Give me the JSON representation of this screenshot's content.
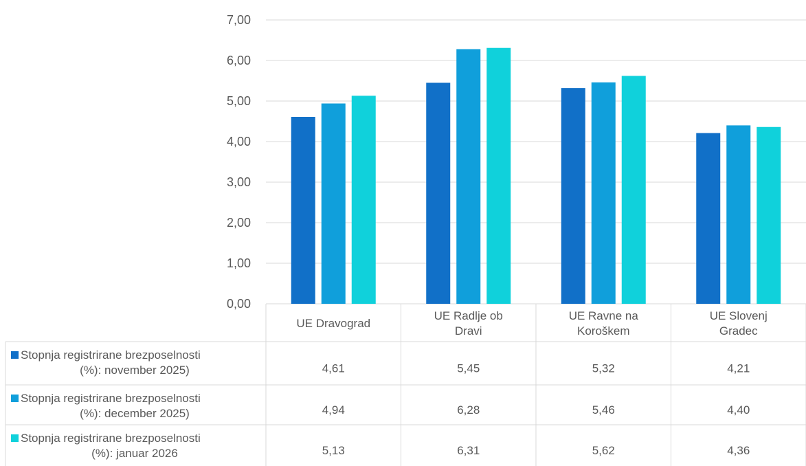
{
  "chart_data": {
    "type": "bar",
    "categories": [
      [
        "UE Dravograd"
      ],
      [
        "UE Radlje ob",
        "Dravi"
      ],
      [
        "UE Ravne na",
        "Koroškem"
      ],
      [
        "UE Slovenj",
        "Gradec"
      ]
    ],
    "series": [
      {
        "name": [
          "Stopnja registrirane brezposelnosti",
          "(%): november 2025)"
        ],
        "color": "#1170c8",
        "values": [
          4.61,
          5.45,
          5.32,
          4.21
        ],
        "labels": [
          "4,61",
          "5,45",
          "5,32",
          "4,21"
        ]
      },
      {
        "name": [
          "Stopnja registrirane brezposelnosti",
          "(%): december 2025)"
        ],
        "color": "#109fdb",
        "values": [
          4.94,
          6.28,
          5.46,
          4.4
        ],
        "labels": [
          "4,94",
          "6,28",
          "5,46",
          "4,40"
        ]
      },
      {
        "name": [
          "Stopnja registrirane brezposelnosti",
          "(%): januar 2026"
        ],
        "color": "#10d1db",
        "values": [
          5.13,
          6.31,
          5.62,
          4.36
        ],
        "labels": [
          "5,13",
          "6,31",
          "5,62",
          "4,36"
        ]
      }
    ],
    "ylim": [
      0,
      7
    ],
    "yticks": [
      0,
      1,
      2,
      3,
      4,
      5,
      6,
      7
    ],
    "ytick_labels": [
      "0,00",
      "1,00",
      "2,00",
      "3,00",
      "4,00",
      "5,00",
      "6,00",
      "7,00"
    ],
    "grid": true,
    "legend": "data-table",
    "colors": {
      "grid": "#d9d9d9",
      "text": "#595959"
    }
  }
}
